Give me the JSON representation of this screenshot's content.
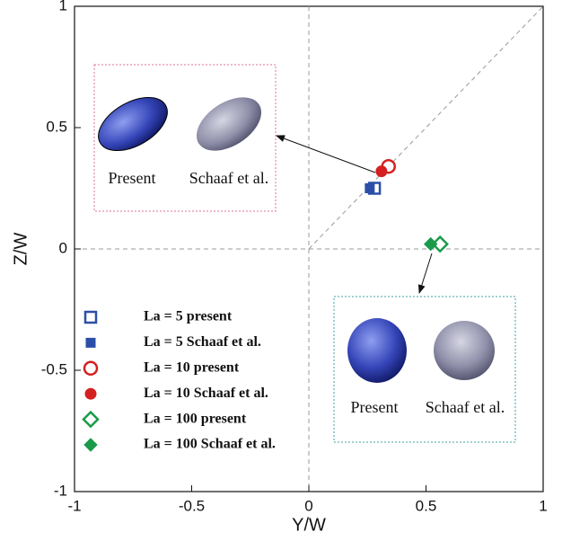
{
  "chart_data": {
    "type": "scatter",
    "xlabel": "Y/W",
    "ylabel": "Z/W",
    "xlim": [
      -1,
      1
    ],
    "ylim": [
      -1,
      1
    ],
    "xticks": [
      -1,
      -0.5,
      0,
      0.5,
      1
    ],
    "yticks": [
      -1,
      -0.5,
      0,
      0.5,
      1
    ],
    "series": [
      {
        "name": "La = 5 present",
        "color": "#2b4fa8",
        "marker": "square",
        "filled": false,
        "x": [
          0.28
        ],
        "values": [
          0.25
        ]
      },
      {
        "name": "La = 5 Schaaf et al.",
        "color": "#2b4fa8",
        "marker": "square",
        "filled": true,
        "x": [
          0.26
        ],
        "values": [
          0.25
        ]
      },
      {
        "name": "La = 10 present",
        "color": "#d42020",
        "marker": "circle",
        "filled": false,
        "x": [
          0.34
        ],
        "values": [
          0.34
        ]
      },
      {
        "name": "La = 10 Schaaf et al.",
        "color": "#d42020",
        "marker": "circle",
        "filled": true,
        "x": [
          0.31
        ],
        "values": [
          0.32
        ]
      },
      {
        "name": "La = 100 present",
        "color": "#1a9a4a",
        "marker": "diamond",
        "filled": false,
        "x": [
          0.56
        ],
        "values": [
          0.02
        ]
      },
      {
        "name": "La = 100 Schaaf et al.",
        "color": "#1a9a4a",
        "marker": "diamond",
        "filled": true,
        "x": [
          0.52
        ],
        "values": [
          0.02
        ]
      }
    ],
    "annotations": [
      "Present",
      "Schaaf et al.",
      "Present",
      "Schaaf et al."
    ]
  }
}
